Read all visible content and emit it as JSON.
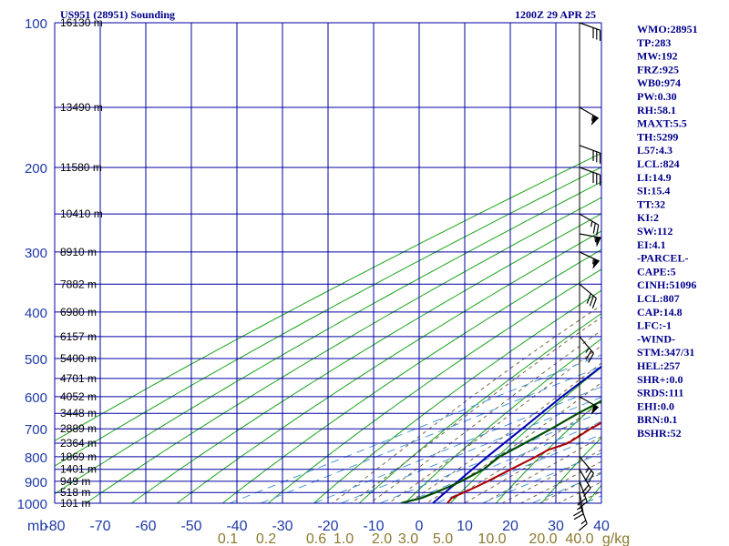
{
  "header": {
    "station": "US951 (28951) Sounding",
    "time": "1200Z 29 APR 25"
  },
  "stats": [
    "WMO:28951",
    "TP:283",
    "MW:192",
    "FRZ:925",
    "WB0:974",
    "PW:0.30",
    "RH:58.1",
    "MAXT:5.5",
    "TH:5299",
    "L57:4.3",
    "LCL:824",
    "LI:14.9",
    "SI:15.4",
    "TT:32",
    "KI:2",
    "SW:112",
    "EI:4.1",
    "-PARCEL-",
    "CAPE:5",
    "CINH:51096",
    "LCL:807",
    "CAP:14.8",
    "LFC:-1",
    "-WIND-",
    "STM:347/31",
    "HEL:257",
    "SHR+:0.0",
    "SRDS:111",
    "EHI:0.0",
    "BRN:0.1",
    "BSHR:52"
  ],
  "colors": {
    "grid": "#0000a0",
    "dry_adiabat": "#1aa31a",
    "moist_adiabat": "#6b5a2a",
    "mixing_ratio": "#3a8fd8",
    "temperature": "#b00000",
    "dewpoint": "#004d00",
    "parcel": "#0000b0",
    "title": "#00008b"
  },
  "chart_data": {
    "type": "skew-t",
    "pressure_levels": [
      100,
      200,
      300,
      400,
      500,
      600,
      700,
      800,
      900,
      1000
    ],
    "pressure_unit": "mb",
    "height_labels": [
      {
        "p": 100,
        "label": "16130 m"
      },
      {
        "p": 150,
        "label": "13490 m"
      },
      {
        "p": 200,
        "label": "11580 m"
      },
      {
        "p": 250,
        "label": "10410 m"
      },
      {
        "p": 300,
        "label": "8910 m"
      },
      {
        "p": 350,
        "label": "7882 m"
      },
      {
        "p": 400,
        "label": "6980 m"
      },
      {
        "p": 450,
        "label": "6157 m"
      },
      {
        "p": 500,
        "label": "5400 m"
      },
      {
        "p": 550,
        "label": "4701 m"
      },
      {
        "p": 600,
        "label": "4052 m"
      },
      {
        "p": 650,
        "label": "3448 m"
      },
      {
        "p": 700,
        "label": "2889 m"
      },
      {
        "p": 750,
        "label": "2364 m"
      },
      {
        "p": 800,
        "label": "1869 m"
      },
      {
        "p": 850,
        "label": "1401 m"
      },
      {
        "p": 900,
        "label": "949 m"
      },
      {
        "p": 950,
        "label": "518 m"
      },
      {
        "p": 1000,
        "label": "101 m"
      }
    ],
    "temperature_ticks": [
      -80,
      -70,
      -60,
      -50,
      -40,
      -30,
      -20,
      -10,
      0,
      10,
      20,
      30,
      40
    ],
    "temperature_axis_label": "mb",
    "mixing_ratio_ticks": [
      "0.1",
      "0.2",
      "0.6",
      "1.0",
      "2.0",
      "3.0",
      "5.0",
      "10.0",
      "20.0",
      "40.0"
    ],
    "mixing_ratio_label": "g/kg",
    "xlim": [
      -80,
      40
    ],
    "ylim": [
      100,
      1050
    ],
    "grid": true,
    "temperature": [
      [
        1000,
        6.2
      ],
      [
        975,
        4.0
      ],
      [
        950,
        3.4
      ],
      [
        925,
        2.8
      ],
      [
        900,
        2.0
      ],
      [
        850,
        0.0
      ],
      [
        800,
        -2.0
      ],
      [
        775,
        -3.4
      ],
      [
        750,
        -3.0
      ],
      [
        700,
        -6.6
      ],
      [
        650,
        -9.6
      ],
      [
        600,
        -11.0
      ],
      [
        550,
        -18.0
      ],
      [
        500,
        -23.0
      ],
      [
        450,
        -30.0
      ],
      [
        400,
        -38.0
      ],
      [
        375,
        -42.0
      ],
      [
        350,
        -47.6
      ],
      [
        325,
        -47.8
      ],
      [
        300,
        -53.0
      ],
      [
        275,
        -57.0
      ],
      [
        250,
        -55.0
      ],
      [
        200,
        -53.0
      ],
      [
        150,
        -49.0
      ],
      [
        125,
        -49.5
      ],
      [
        100,
        -51.0
      ]
    ],
    "dewpoint": [
      [
        1000,
        -4.0
      ],
      [
        975,
        -2.6
      ],
      [
        950,
        -2.8
      ],
      [
        925,
        -3.2
      ],
      [
        900,
        -3.8
      ],
      [
        850,
        -6.0
      ],
      [
        800,
        -10.0
      ],
      [
        750,
        -12.5
      ],
      [
        700,
        -15.2
      ],
      [
        650,
        -18.5
      ],
      [
        600,
        -21.5
      ],
      [
        550,
        -27.0
      ],
      [
        500,
        -35.2
      ],
      [
        450,
        -42.0
      ],
      [
        400,
        -47.5
      ],
      [
        350,
        -54.0
      ],
      [
        300,
        -62.0
      ],
      [
        250,
        -74.0
      ],
      [
        200,
        -75.0
      ],
      [
        150,
        -75.5
      ],
      [
        125,
        -76.0
      ],
      [
        100,
        -78.0
      ]
    ],
    "parcel": [
      [
        1000,
        3.0
      ],
      [
        900,
        -4.5
      ],
      [
        800,
        -12.7
      ],
      [
        700,
        -21.6
      ],
      [
        600,
        -32.0
      ],
      [
        500,
        -43.6
      ],
      [
        400,
        -57.6
      ],
      [
        300,
        -75.0
      ],
      [
        255,
        -84.0
      ]
    ],
    "wind_barbs": [
      {
        "p": 100,
        "dir": 290,
        "speed": 30
      },
      {
        "p": 150,
        "dir": 300,
        "speed": 55
      },
      {
        "p": 180,
        "dir": 290,
        "speed": 30
      },
      {
        "p": 200,
        "dir": 290,
        "speed": 30
      },
      {
        "p": 250,
        "dir": 300,
        "speed": 25
      },
      {
        "p": 275,
        "dir": 280,
        "speed": 55
      },
      {
        "p": 300,
        "dir": 295,
        "speed": 55
      },
      {
        "p": 350,
        "dir": 310,
        "speed": 30
      },
      {
        "p": 450,
        "dir": 320,
        "speed": 25
      },
      {
        "p": 600,
        "dir": 300,
        "speed": 50
      },
      {
        "p": 800,
        "dir": 320,
        "speed": 25
      },
      {
        "p": 850,
        "dir": 330,
        "speed": 20
      },
      {
        "p": 900,
        "dir": 340,
        "speed": 20
      },
      {
        "p": 950,
        "dir": 350,
        "speed": 25
      },
      {
        "p": 1000,
        "dir": 340,
        "speed": 15
      }
    ]
  }
}
